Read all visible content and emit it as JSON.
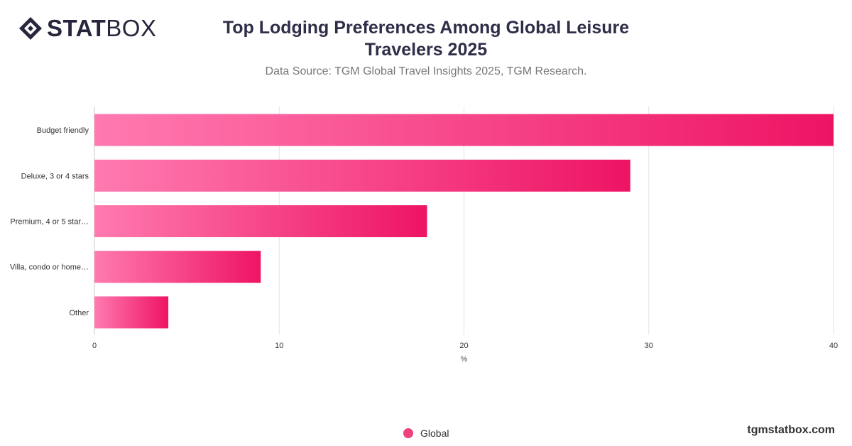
{
  "brand": {
    "logo_bold": "STAT",
    "logo_light": "BOX",
    "site": "tgmstatbox.com"
  },
  "colors": {
    "bar_start": "#ff7ab0",
    "bar_end": "#ee1464",
    "legend": "#f0407e",
    "grid": "#e3e3e3",
    "axis": "#9a9a9a"
  },
  "chart_data": {
    "type": "bar",
    "orientation": "horizontal",
    "title": "Top Lodging Preferences Among Global Leisure Travelers 2025",
    "subtitle": "Data Source: TGM Global Travel Insights 2025, TGM Research.",
    "categories": [
      "Budget friendly",
      "Deluxe, 3 or 4 stars",
      "Premium, 4 or 5 star…",
      "Villa, condo or home…",
      "Other"
    ],
    "series": [
      {
        "name": "Global",
        "values": [
          40,
          29,
          18,
          9,
          4
        ]
      }
    ],
    "xlabel": "%",
    "ylabel": "",
    "xlim": [
      0,
      40
    ],
    "xticks": [
      0,
      10,
      20,
      30,
      40
    ],
    "grid": true,
    "legend_position": "bottom-center"
  }
}
